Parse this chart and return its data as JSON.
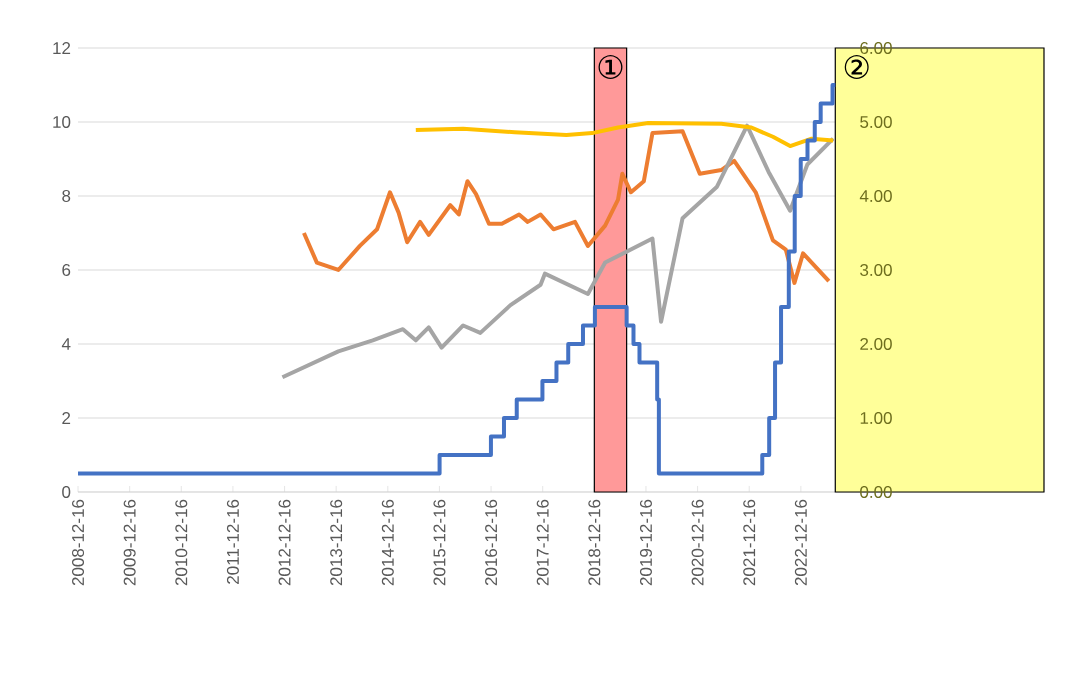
{
  "chart_data": {
    "type": "line",
    "x": [
      "2008-12-16",
      "2015-12-17",
      "2016-12-15",
      "2017-03-16",
      "2017-06-15",
      "2017-12-14",
      "2018-03-22",
      "2018-06-14",
      "2018-09-27",
      "2018-12-20",
      "2019-08-01",
      "2019-09-19",
      "2019-10-31",
      "2020-03-04",
      "2020-03-16",
      "2022-03-17",
      "2022-05-05",
      "2022-06-16",
      "2022-07-28",
      "2022-09-22",
      "2022-11-03",
      "2022-12-15",
      "2023-02-02",
      "2023-03-23",
      "2023-05-04",
      "2023-07-27",
      "2023-08-16"
    ],
    "series": [
      {
        "type": "step",
        "axis": "y2",
        "color": "#4472c4",
        "values": [
          0.25,
          0.5,
          0.75,
          1.0,
          1.25,
          1.5,
          1.75,
          2.0,
          2.25,
          2.5,
          2.25,
          2.0,
          1.75,
          1.25,
          0.25,
          0.5,
          1.0,
          1.75,
          2.5,
          3.25,
          4.0,
          4.5,
          4.75,
          5.0,
          5.25,
          5.5,
          5.5
        ]
      },
      {
        "color": "#ed7d31",
        "x": [
          "2013-05",
          "2013-08",
          "2014-01",
          "2014-06",
          "2014-10",
          "2015-01",
          "2015-03",
          "2015-05",
          "2015-08",
          "2015-10",
          "2016-03",
          "2016-05",
          "2016-07",
          "2016-09",
          "2016-12",
          "2017-03",
          "2017-07",
          "2017-09",
          "2017-12",
          "2018-03",
          "2018-08",
          "2018-11",
          "2019-03",
          "2019-06",
          "2019-07",
          "2019-09",
          "2019-12",
          "2020-02",
          "2020-09",
          "2021-01",
          "2021-06",
          "2021-09",
          "2022-02",
          "2022-06",
          "2022-09",
          "2022-11",
          "2023-01",
          "2023-07"
        ],
        "values": [
          7.0,
          6.2,
          6.0,
          6.65,
          7.1,
          8.1,
          7.55,
          6.75,
          7.3,
          6.95,
          7.75,
          7.5,
          8.4,
          8.05,
          7.25,
          7.25,
          7.5,
          7.3,
          7.5,
          7.1,
          7.3,
          6.65,
          7.2,
          7.9,
          8.6,
          8.1,
          8.4,
          9.7,
          9.75,
          8.6,
          8.7,
          8.95,
          8.1,
          6.8,
          6.55,
          5.65,
          6.45,
          5.7
        ]
      },
      {
        "color": "#a5a5a5",
        "x": [
          "2012-12",
          "2014-01",
          "2014-09",
          "2015-04",
          "2015-07",
          "2015-10",
          "2016-01",
          "2016-06",
          "2016-10",
          "2017-05",
          "2017-12",
          "2018-01",
          "2018-11",
          "2019-03",
          "2020-02",
          "2020-04",
          "2020-09",
          "2021-05",
          "2021-12",
          "2022-05",
          "2022-10",
          "2023-02",
          "2023-08"
        ],
        "values": [
          3.1,
          3.8,
          4.1,
          4.4,
          4.1,
          4.45,
          3.9,
          4.5,
          4.3,
          5.05,
          5.6,
          5.9,
          5.35,
          6.2,
          6.85,
          4.6,
          7.4,
          8.25,
          9.9,
          8.65,
          7.6,
          8.85,
          9.55
        ]
      },
      {
        "color": "#ffc000",
        "x": [
          "2015-07",
          "2016-06",
          "2017-06",
          "2018-06",
          "2018-12",
          "2019-06",
          "2020-01",
          "2021-06",
          "2022-01",
          "2022-06",
          "2022-10",
          "2023-03",
          "2023-08"
        ],
        "values": [
          9.78,
          9.82,
          9.72,
          9.65,
          9.7,
          9.85,
          9.97,
          9.95,
          9.85,
          9.6,
          9.35,
          9.55,
          9.5
        ]
      }
    ],
    "xlim": [
      "2008-12-16",
      "2027-09-01"
    ],
    "xticks": [
      "2008-12-16",
      "2009-12-16",
      "2010-12-16",
      "2011-12-16",
      "2012-12-16",
      "2013-12-16",
      "2014-12-16",
      "2015-12-16",
      "2016-12-16",
      "2017-12-16",
      "2018-12-16",
      "2019-12-16",
      "2020-12-16",
      "2021-12-16",
      "2022-12-16"
    ],
    "ylim": [
      0,
      12
    ],
    "yticks": [
      0,
      2,
      4,
      6,
      8,
      10,
      12
    ],
    "y2lim": [
      0,
      6
    ],
    "y2ticks": [
      {
        "value": 0,
        "label": "0.00"
      },
      {
        "value": 1,
        "label": "1.00"
      },
      {
        "value": 2,
        "label": "2.00"
      },
      {
        "value": 3,
        "label": "3.00"
      },
      {
        "value": 4,
        "label": "4.00"
      },
      {
        "value": 5,
        "label": "5.00"
      },
      {
        "value": 6,
        "label": "6.00"
      }
    ],
    "grid": "y",
    "legend": false,
    "bands": [
      {
        "axis": "x",
        "from": "2018-12-16",
        "to": "2019-08-01",
        "label": "①",
        "color": "#ff9999"
      },
      {
        "axis": "x",
        "from": "2023-08-16",
        "to": "2027-09-01",
        "label": "②",
        "color": "#ffff99"
      }
    ]
  }
}
